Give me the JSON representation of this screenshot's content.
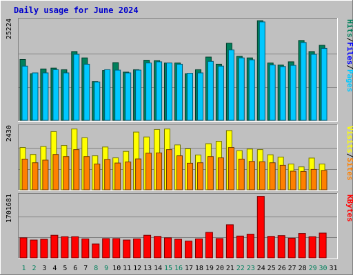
{
  "chart_data": {
    "type": "bar",
    "title": "Daily usage for June 2024",
    "days": [
      "1",
      "2",
      "3",
      "4",
      "5",
      "6",
      "7",
      "8",
      "9",
      "10",
      "11",
      "12",
      "13",
      "14",
      "15",
      "16",
      "17",
      "18",
      "19",
      "20",
      "21",
      "22",
      "23",
      "24",
      "25",
      "26",
      "27",
      "28",
      "29",
      "30",
      "31"
    ],
    "weekend_days": [
      "1",
      "2",
      "8",
      "9",
      "15",
      "16",
      "22",
      "23",
      "29",
      "30"
    ],
    "colors": {
      "hits": "#00805c",
      "files": "#0000ff",
      "pages": "#00c8ff",
      "visits": "#ffff00",
      "sites": "#ff8000",
      "kbytes": "#ff0000",
      "weekday_label": "#000000",
      "weekend_label": "#00805c",
      "title": "#0000cc",
      "background": "#c0c0c0",
      "plot_bg": "#c0c0c0"
    },
    "panels": [
      {
        "id": "top",
        "ymax_label": "25224",
        "ymax": 25224,
        "right_labels": [
          {
            "text": "Hits",
            "color": "#00805c"
          },
          {
            "text": "/",
            "color": "#000000"
          },
          {
            "text": "Files",
            "color": "#0000ff"
          },
          {
            "text": "/",
            "color": "#000000"
          },
          {
            "text": "Pages",
            "color": "#00c8ff"
          }
        ],
        "series": [
          {
            "name": "Hits",
            "values": [
              15400,
              11800,
              13000,
              13200,
              12800,
              17400,
              15800,
              9800,
              12600,
              14600,
              12200,
              12800,
              15200,
              15100,
              14500,
              14500,
              11800,
              12800,
              16000,
              14200,
              19500,
              16200,
              15800,
              25200,
              14500,
              14000,
              14800,
              20200,
              17400,
              19000,
              0
            ]
          },
          {
            "name": "Pages",
            "values": [
              13700,
              12000,
              12000,
              12800,
              12000,
              16700,
              14200,
              9700,
              12800,
              12700,
              12000,
              12700,
              14500,
              14800,
              14500,
              14200,
              11900,
              12000,
              14900,
              13700,
              17800,
              15800,
              15300,
              24900,
              14000,
              13600,
              13900,
              19700,
              16700,
              18200,
              0
            ]
          }
        ]
      },
      {
        "id": "middle",
        "ymax_label": "2430",
        "ymax": 2430,
        "right_labels": [
          {
            "text": "Visits",
            "color": "#ffff00"
          },
          {
            "text": "/",
            "color": "#000000"
          },
          {
            "text": "Sites",
            "color": "#ff8000"
          }
        ],
        "series": [
          {
            "name": "Visits",
            "values": [
              1640,
              1370,
              1680,
              2260,
              1720,
              2360,
              2020,
              1320,
              1660,
              1240,
              1490,
              2240,
              2050,
              2340,
              2360,
              1740,
              1590,
              1350,
              1790,
              1880,
              2300,
              1520,
              1580,
              1560,
              1360,
              1270,
              1000,
              890,
              1230,
              1000,
              0
            ]
          },
          {
            "name": "Sites",
            "values": [
              1190,
              1050,
              1150,
              1370,
              1290,
              1560,
              1290,
              1000,
              1180,
              1040,
              1080,
              1200,
              1420,
              1430,
              1560,
              1320,
              1030,
              1050,
              1290,
              1240,
              1640,
              1190,
              1100,
              1090,
              1050,
              950,
              720,
              710,
              790,
              750,
              0
            ]
          }
        ]
      },
      {
        "id": "bottom",
        "ymax_label": "1701681",
        "ymax": 1701681,
        "right_labels": [
          {
            "text": "KBytes",
            "color": "#ff0000"
          }
        ],
        "series": [
          {
            "name": "KBytes",
            "values": [
              550000,
              490000,
              510000,
              620000,
              580000,
              580000,
              520000,
              380000,
              530000,
              530000,
              490000,
              520000,
              620000,
              590000,
              550000,
              510000,
              460000,
              520000,
              700000,
              530000,
              910000,
              600000,
              650000,
              1690000,
              590000,
              610000,
              540000,
              670000,
              580000,
              680000,
              0
            ]
          }
        ]
      }
    ]
  }
}
